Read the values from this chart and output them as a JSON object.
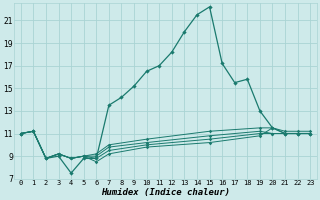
{
  "xlabel": "Humidex (Indice chaleur)",
  "background_color": "#ceeaea",
  "grid_color": "#aad4d4",
  "line_color": "#1a7a6e",
  "xlim": [
    -0.5,
    23.5
  ],
  "ylim": [
    7,
    22.5
  ],
  "yticks": [
    7,
    9,
    11,
    13,
    15,
    17,
    19,
    21
  ],
  "xticks": [
    0,
    1,
    2,
    3,
    4,
    5,
    6,
    7,
    8,
    9,
    10,
    11,
    12,
    13,
    14,
    15,
    16,
    17,
    18,
    19,
    20,
    21,
    22,
    23
  ],
  "main_series": [
    [
      0,
      11.0
    ],
    [
      1,
      11.2
    ],
    [
      2,
      8.8
    ],
    [
      3,
      9.0
    ],
    [
      4,
      7.5
    ],
    [
      5,
      8.8
    ],
    [
      6,
      8.8
    ],
    [
      7,
      13.5
    ],
    [
      8,
      14.2
    ],
    [
      9,
      15.2
    ],
    [
      10,
      16.5
    ],
    [
      11,
      17.0
    ],
    [
      12,
      18.2
    ],
    [
      13,
      20.0
    ],
    [
      14,
      21.5
    ],
    [
      15,
      22.2
    ],
    [
      16,
      17.2
    ],
    [
      17,
      15.5
    ],
    [
      18,
      15.8
    ],
    [
      19,
      13.0
    ],
    [
      20,
      11.5
    ],
    [
      21,
      11.0
    ],
    [
      22,
      11.0
    ],
    [
      23,
      11.0
    ]
  ],
  "flat_series": [
    [
      [
        0,
        11.0
      ],
      [
        1,
        11.2
      ],
      [
        2,
        8.8
      ],
      [
        3,
        9.2
      ],
      [
        4,
        8.8
      ],
      [
        5,
        9.0
      ],
      [
        6,
        9.2
      ],
      [
        7,
        10.0
      ],
      [
        10,
        10.5
      ],
      [
        15,
        11.2
      ],
      [
        19,
        11.5
      ],
      [
        20,
        11.5
      ],
      [
        21,
        11.2
      ],
      [
        22,
        11.2
      ],
      [
        23,
        11.2
      ]
    ],
    [
      [
        0,
        11.0
      ],
      [
        1,
        11.2
      ],
      [
        2,
        8.8
      ],
      [
        3,
        9.2
      ],
      [
        4,
        8.8
      ],
      [
        5,
        9.0
      ],
      [
        6,
        9.0
      ],
      [
        7,
        9.8
      ],
      [
        10,
        10.2
      ],
      [
        15,
        10.8
      ],
      [
        19,
        11.2
      ],
      [
        20,
        11.0
      ],
      [
        21,
        11.0
      ],
      [
        22,
        11.0
      ],
      [
        23,
        11.0
      ]
    ],
    [
      [
        0,
        11.0
      ],
      [
        1,
        11.2
      ],
      [
        2,
        8.8
      ],
      [
        3,
        9.2
      ],
      [
        4,
        8.8
      ],
      [
        5,
        9.0
      ],
      [
        6,
        8.8
      ],
      [
        7,
        9.5
      ],
      [
        10,
        10.0
      ],
      [
        15,
        10.5
      ],
      [
        19,
        11.0
      ],
      [
        20,
        11.0
      ],
      [
        21,
        11.0
      ],
      [
        22,
        11.0
      ],
      [
        23,
        11.0
      ]
    ],
    [
      [
        0,
        11.0
      ],
      [
        1,
        11.2
      ],
      [
        2,
        8.8
      ],
      [
        3,
        9.2
      ],
      [
        4,
        8.8
      ],
      [
        5,
        9.0
      ],
      [
        6,
        8.5
      ],
      [
        7,
        9.2
      ],
      [
        10,
        9.8
      ],
      [
        15,
        10.2
      ],
      [
        19,
        10.8
      ],
      [
        20,
        11.5
      ],
      [
        21,
        11.0
      ],
      [
        22,
        11.0
      ],
      [
        23,
        11.0
      ]
    ]
  ]
}
